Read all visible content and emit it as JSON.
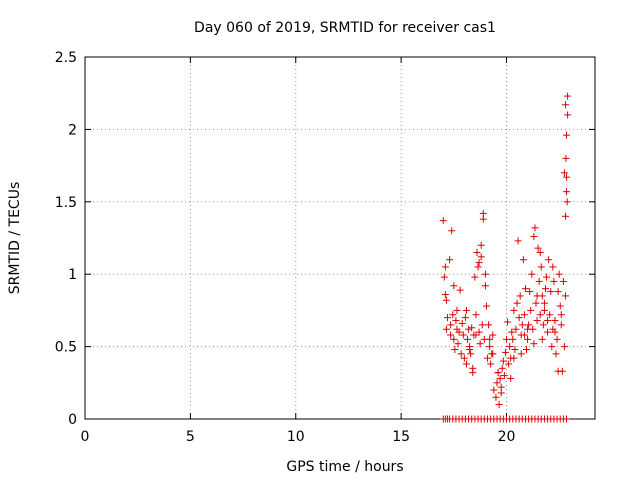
{
  "chart_data": {
    "type": "scatter",
    "title": "Day 060 of 2019, SRMTID for receiver cas1",
    "xlabel": "GPS time / hours",
    "ylabel": "SRMTID / TECUs",
    "xlim": [
      0,
      24.2
    ],
    "ylim": [
      0,
      2.5
    ],
    "xticks": [
      0,
      5,
      10,
      15,
      20
    ],
    "yticks": [
      0,
      0.5,
      1,
      1.5,
      2,
      2.5
    ],
    "xtick_labels": [
      "0",
      "5",
      "10",
      "15",
      "20"
    ],
    "ytick_labels": [
      "0",
      "0.5",
      "1",
      "1.5",
      "2",
      "2.5"
    ],
    "grid": true,
    "marker": "+",
    "marker_color": "#dd0000",
    "series": [
      {
        "name": "SRMTID",
        "x": [
          17.0,
          17.05,
          17.1,
          17.1,
          17.15,
          17.2,
          17.3,
          17.35,
          17.4,
          17.45,
          17.5,
          17.55,
          17.6,
          17.65,
          17.7,
          17.75,
          17.8,
          17.85,
          17.9,
          17.95,
          18.0,
          18.05,
          18.1,
          18.15,
          18.2,
          18.25,
          18.3,
          18.35,
          18.4,
          18.45,
          18.5,
          18.55,
          18.6,
          18.65,
          18.7,
          18.75,
          18.8,
          18.85,
          18.9,
          18.95,
          19.0,
          19.05,
          19.1,
          19.15,
          19.2,
          19.25,
          19.3,
          19.35,
          19.4,
          19.5,
          19.55,
          19.6,
          19.65,
          19.7,
          19.75,
          19.8,
          19.85,
          19.9,
          19.95,
          20.0,
          20.05,
          20.1,
          20.15,
          20.2,
          20.25,
          20.3,
          20.35,
          20.4,
          20.45,
          20.5,
          20.55,
          20.6,
          20.65,
          20.7,
          20.75,
          20.8,
          20.85,
          20.9,
          20.95,
          21.0,
          21.05,
          21.1,
          21.15,
          21.2,
          21.25,
          21.3,
          21.35,
          21.4,
          21.45,
          21.5,
          21.55,
          21.6,
          21.65,
          21.7,
          21.75,
          21.8,
          21.85,
          21.9,
          21.95,
          22.0,
          22.05,
          22.1,
          22.15,
          22.2,
          22.25,
          22.3,
          22.35,
          22.4,
          22.45,
          22.5,
          22.55,
          22.6,
          22.65,
          22.7,
          22.75,
          22.75,
          22.8,
          22.8,
          22.8,
          22.85,
          22.85,
          22.9,
          17.0,
          17.1,
          17.2,
          17.3,
          17.45,
          17.6,
          17.75,
          17.9,
          18.05,
          18.2,
          18.35,
          18.5,
          18.65,
          18.8,
          18.95,
          19.1,
          19.25,
          19.4,
          19.55,
          19.7,
          19.85,
          20.0,
          20.15,
          20.3,
          20.45,
          20.6,
          20.75,
          20.9,
          21.05,
          21.2,
          21.35,
          21.5,
          21.65,
          21.8,
          21.95,
          22.1,
          22.25,
          22.4,
          22.55,
          22.7,
          22.85,
          18.7,
          18.8,
          18.9,
          19.0,
          21.6,
          21.7,
          22.2,
          17.15,
          17.35,
          17.5,
          17.65,
          18.1,
          18.25,
          18.4,
          18.55,
          19.2,
          19.35,
          19.6,
          19.75,
          20.2,
          20.35,
          20.7,
          20.85,
          21.0,
          21.3,
          21.45,
          21.8,
          21.95,
          22.3,
          22.45,
          22.6
        ],
        "y": [
          1.37,
          0.98,
          1.05,
          0.86,
          0.62,
          0.7,
          1.1,
          0.65,
          1.3,
          0.72,
          0.55,
          0.48,
          0.68,
          0.75,
          0.52,
          0.6,
          0.89,
          0.45,
          0.66,
          0.58,
          0.42,
          0.7,
          0.38,
          0.55,
          0.62,
          0.5,
          0.45,
          0.63,
          0.32,
          0.58,
          0.98,
          0.72,
          1.15,
          1.05,
          0.6,
          0.52,
          1.2,
          0.65,
          1.42,
          0.55,
          1.0,
          0.78,
          0.42,
          0.65,
          0.5,
          0.38,
          0.45,
          0.58,
          0.2,
          0.15,
          0.25,
          0.32,
          0.1,
          0.28,
          0.22,
          0.35,
          0.4,
          0.3,
          0.46,
          0.55,
          0.67,
          0.38,
          0.5,
          0.42,
          0.6,
          0.55,
          0.75,
          0.48,
          0.62,
          0.8,
          1.23,
          0.7,
          0.85,
          0.58,
          0.65,
          1.1,
          0.72,
          0.9,
          0.48,
          0.55,
          0.65,
          0.88,
          0.75,
          1.0,
          0.62,
          1.26,
          1.32,
          0.8,
          0.68,
          1.18,
          0.95,
          0.72,
          1.05,
          0.55,
          0.65,
          0.8,
          0.9,
          0.98,
          0.6,
          1.1,
          0.72,
          0.88,
          0.5,
          0.62,
          0.95,
          0.68,
          0.45,
          0.55,
          0.33,
          1.0,
          0.78,
          0.65,
          0.33,
          0.95,
          1.7,
          0.5,
          2.17,
          1.4,
          0.85,
          1.57,
          1.96,
          2.1,
          0.0,
          0.0,
          0.0,
          0.0,
          0.0,
          0.0,
          0.0,
          0.0,
          0.0,
          0.0,
          0.0,
          0.0,
          0.0,
          0.0,
          0.0,
          0.0,
          0.0,
          0.0,
          0.0,
          0.0,
          0.0,
          0.0,
          0.0,
          0.0,
          0.0,
          0.0,
          0.0,
          0.0,
          0.0,
          0.0,
          0.0,
          0.0,
          0.0,
          0.0,
          0.0,
          0.0,
          0.0,
          0.0,
          0.0,
          0.0,
          0.0,
          1.08,
          1.12,
          1.38,
          0.92,
          1.15,
          0.85,
          1.05,
          0.82,
          0.58,
          0.92,
          0.62,
          0.75,
          0.48,
          0.35,
          0.58,
          0.55,
          0.45,
          0.32,
          0.18,
          0.28,
          0.42,
          0.45,
          0.58,
          0.62,
          0.52,
          0.85,
          0.75,
          0.68,
          0.6,
          0.88,
          0.72
        ],
        "extra_points": [
          [
            22.9,
            2.23
          ],
          [
            22.82,
            1.8
          ],
          [
            22.85,
            1.67
          ],
          [
            22.88,
            1.5
          ]
        ]
      }
    ]
  }
}
